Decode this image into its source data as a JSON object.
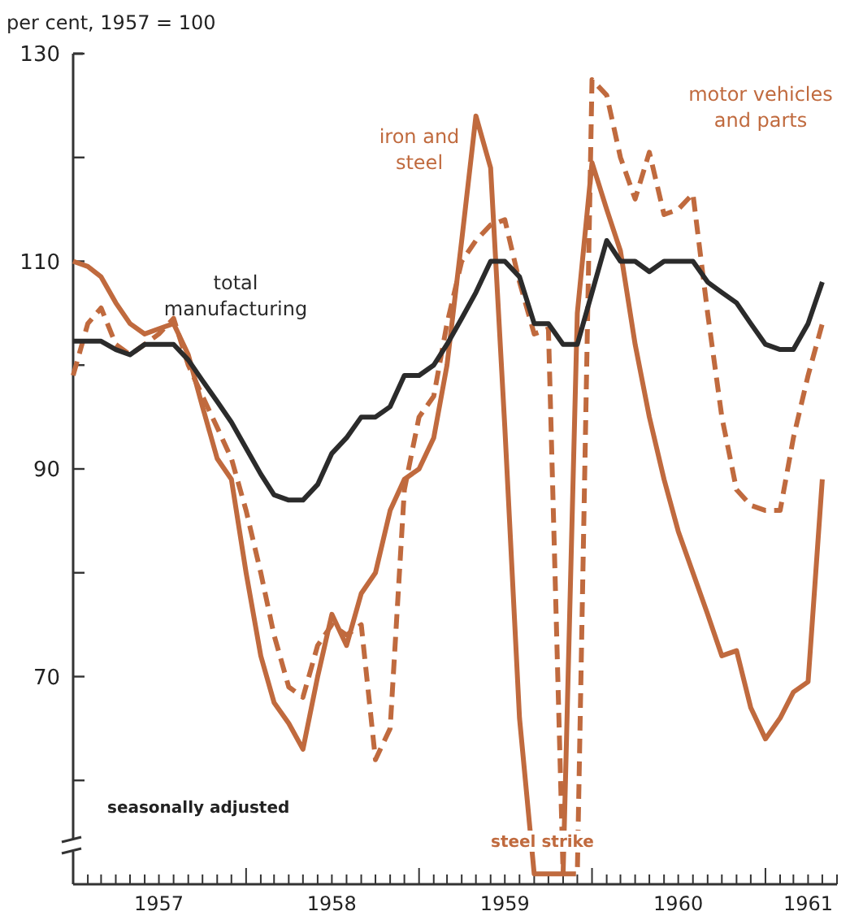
{
  "chart_data": {
    "type": "line",
    "ylabel": "per cent, 1957 = 100",
    "legend": false,
    "x": [
      "1957-01",
      "1957-02",
      "1957-03",
      "1957-04",
      "1957-05",
      "1957-06",
      "1957-07",
      "1957-08",
      "1957-09",
      "1957-10",
      "1957-11",
      "1957-12",
      "1958-01",
      "1958-02",
      "1958-03",
      "1958-04",
      "1958-05",
      "1958-06",
      "1958-07",
      "1958-08",
      "1958-09",
      "1958-10",
      "1958-11",
      "1958-12",
      "1959-01",
      "1959-02",
      "1959-03",
      "1959-04",
      "1959-05",
      "1959-06",
      "1959-07",
      "1959-08",
      "1959-09",
      "1959-10",
      "1959-11",
      "1959-12",
      "1960-01",
      "1960-02",
      "1960-03",
      "1960-04",
      "1960-05",
      "1960-06",
      "1960-07",
      "1960-08",
      "1960-09",
      "1960-10",
      "1960-11",
      "1960-12",
      "1961-01",
      "1961-02",
      "1961-03",
      "1961-04",
      "1961-05"
    ],
    "series": [
      {
        "name": "iron and steel",
        "color": "#c06a3e",
        "line_style": "solid",
        "values": [
          110,
          109.5,
          108.5,
          106,
          104,
          103,
          103.5,
          104,
          101,
          96,
          91,
          89,
          80,
          72,
          67.5,
          65.5,
          63,
          70,
          76,
          73,
          78,
          80,
          86,
          89,
          90,
          93,
          100,
          112,
          124,
          119,
          94,
          66,
          51,
          51,
          51,
          105,
          119.5,
          115,
          111,
          102,
          95,
          89,
          84,
          80,
          76,
          72,
          72.5,
          67,
          64,
          66,
          68.5,
          69.5,
          89
        ]
      },
      {
        "name": "motor vehicles and parts",
        "color": "#c06a3e",
        "line_style": "dashed",
        "values": [
          99,
          104,
          105.5,
          102,
          101,
          102,
          103,
          104.5,
          100,
          97,
          94,
          91,
          86,
          80,
          74,
          69,
          68,
          73,
          75,
          74,
          75,
          62,
          65,
          88,
          95,
          97,
          104,
          110,
          112,
          113.5,
          114,
          108,
          103,
          103.5,
          51,
          51,
          127.5,
          126,
          120,
          116,
          120.5,
          114.5,
          115,
          116.5,
          105,
          95,
          88,
          86.5,
          86,
          86,
          93,
          99,
          104
        ]
      },
      {
        "name": "total manufacturing",
        "color": "#2b2b2b",
        "line_style": "solid",
        "values": [
          102.3,
          102.3,
          102.3,
          101.5,
          101,
          102,
          102,
          102,
          100.5,
          98.5,
          96.5,
          94.5,
          92,
          89.5,
          87.5,
          87,
          87,
          88.5,
          91.5,
          93,
          95,
          95,
          96,
          99,
          99,
          100,
          102,
          104.5,
          107,
          110,
          110,
          108.5,
          104,
          104,
          102,
          102,
          107,
          112,
          110,
          110,
          109,
          110,
          110,
          110,
          108,
          107,
          106,
          104,
          102,
          101.5,
          101.5,
          104,
          108
        ]
      }
    ],
    "xlim": [
      "1957-01",
      "1961-06"
    ],
    "xticks": [
      {
        "value": "1957-01",
        "label": null
      },
      {
        "value": "1957-02",
        "label": null
      },
      {
        "value": "1957-03",
        "label": null
      },
      {
        "value": "1957-04",
        "label": null
      },
      {
        "value": "1957-05",
        "label": null
      },
      {
        "value": "1957-06",
        "label": null
      },
      {
        "value": "1957-07",
        "label": "1957"
      },
      {
        "value": "1957-08",
        "label": null
      },
      {
        "value": "1957-09",
        "label": null
      },
      {
        "value": "1957-10",
        "label": null
      },
      {
        "value": "1957-11",
        "label": null
      },
      {
        "value": "1957-12",
        "label": null
      },
      {
        "value": "1958-01",
        "label": null
      },
      {
        "value": "1958-02",
        "label": null
      },
      {
        "value": "1958-03",
        "label": null
      },
      {
        "value": "1958-04",
        "label": null
      },
      {
        "value": "1958-05",
        "label": null
      },
      {
        "value": "1958-06",
        "label": null
      },
      {
        "value": "1958-07",
        "label": "1958"
      },
      {
        "value": "1958-08",
        "label": null
      },
      {
        "value": "1958-09",
        "label": null
      },
      {
        "value": "1958-10",
        "label": null
      },
      {
        "value": "1958-11",
        "label": null
      },
      {
        "value": "1958-12",
        "label": null
      },
      {
        "value": "1959-01",
        "label": null
      },
      {
        "value": "1959-02",
        "label": null
      },
      {
        "value": "1959-03",
        "label": null
      },
      {
        "value": "1959-04",
        "label": null
      },
      {
        "value": "1959-05",
        "label": null
      },
      {
        "value": "1959-06",
        "label": null
      },
      {
        "value": "1959-07",
        "label": "1959"
      },
      {
        "value": "1959-08",
        "label": null
      },
      {
        "value": "1959-09",
        "label": null
      },
      {
        "value": "1959-10",
        "label": null
      },
      {
        "value": "1959-11",
        "label": null
      },
      {
        "value": "1959-12",
        "label": null
      },
      {
        "value": "1960-01",
        "label": null
      },
      {
        "value": "1960-02",
        "label": null
      },
      {
        "value": "1960-03",
        "label": null
      },
      {
        "value": "1960-04",
        "label": null
      },
      {
        "value": "1960-05",
        "label": null
      },
      {
        "value": "1960-06",
        "label": null
      },
      {
        "value": "1960-07",
        "label": "1960"
      },
      {
        "value": "1960-08",
        "label": null
      },
      {
        "value": "1960-09",
        "label": null
      },
      {
        "value": "1960-10",
        "label": null
      },
      {
        "value": "1960-11",
        "label": null
      },
      {
        "value": "1960-12",
        "label": null
      },
      {
        "value": "1961-01",
        "label": null
      },
      {
        "value": "1961-02",
        "label": null
      },
      {
        "value": "1961-03",
        "label": null
      },
      {
        "value": "1961-04",
        "label": "1961"
      },
      {
        "value": "1961-05",
        "label": null
      },
      {
        "value": "1961-06",
        "label": null
      }
    ],
    "ylim": [
      50,
      130
    ],
    "yticks": [
      {
        "value": 60,
        "label": null
      },
      70,
      {
        "value": 80,
        "label": null
      },
      90,
      {
        "value": 100,
        "label": null
      },
      110,
      {
        "value": 120,
        "label": null
      },
      130
    ],
    "annotations": [
      "seasonally adjusted",
      "steel strike"
    ]
  }
}
